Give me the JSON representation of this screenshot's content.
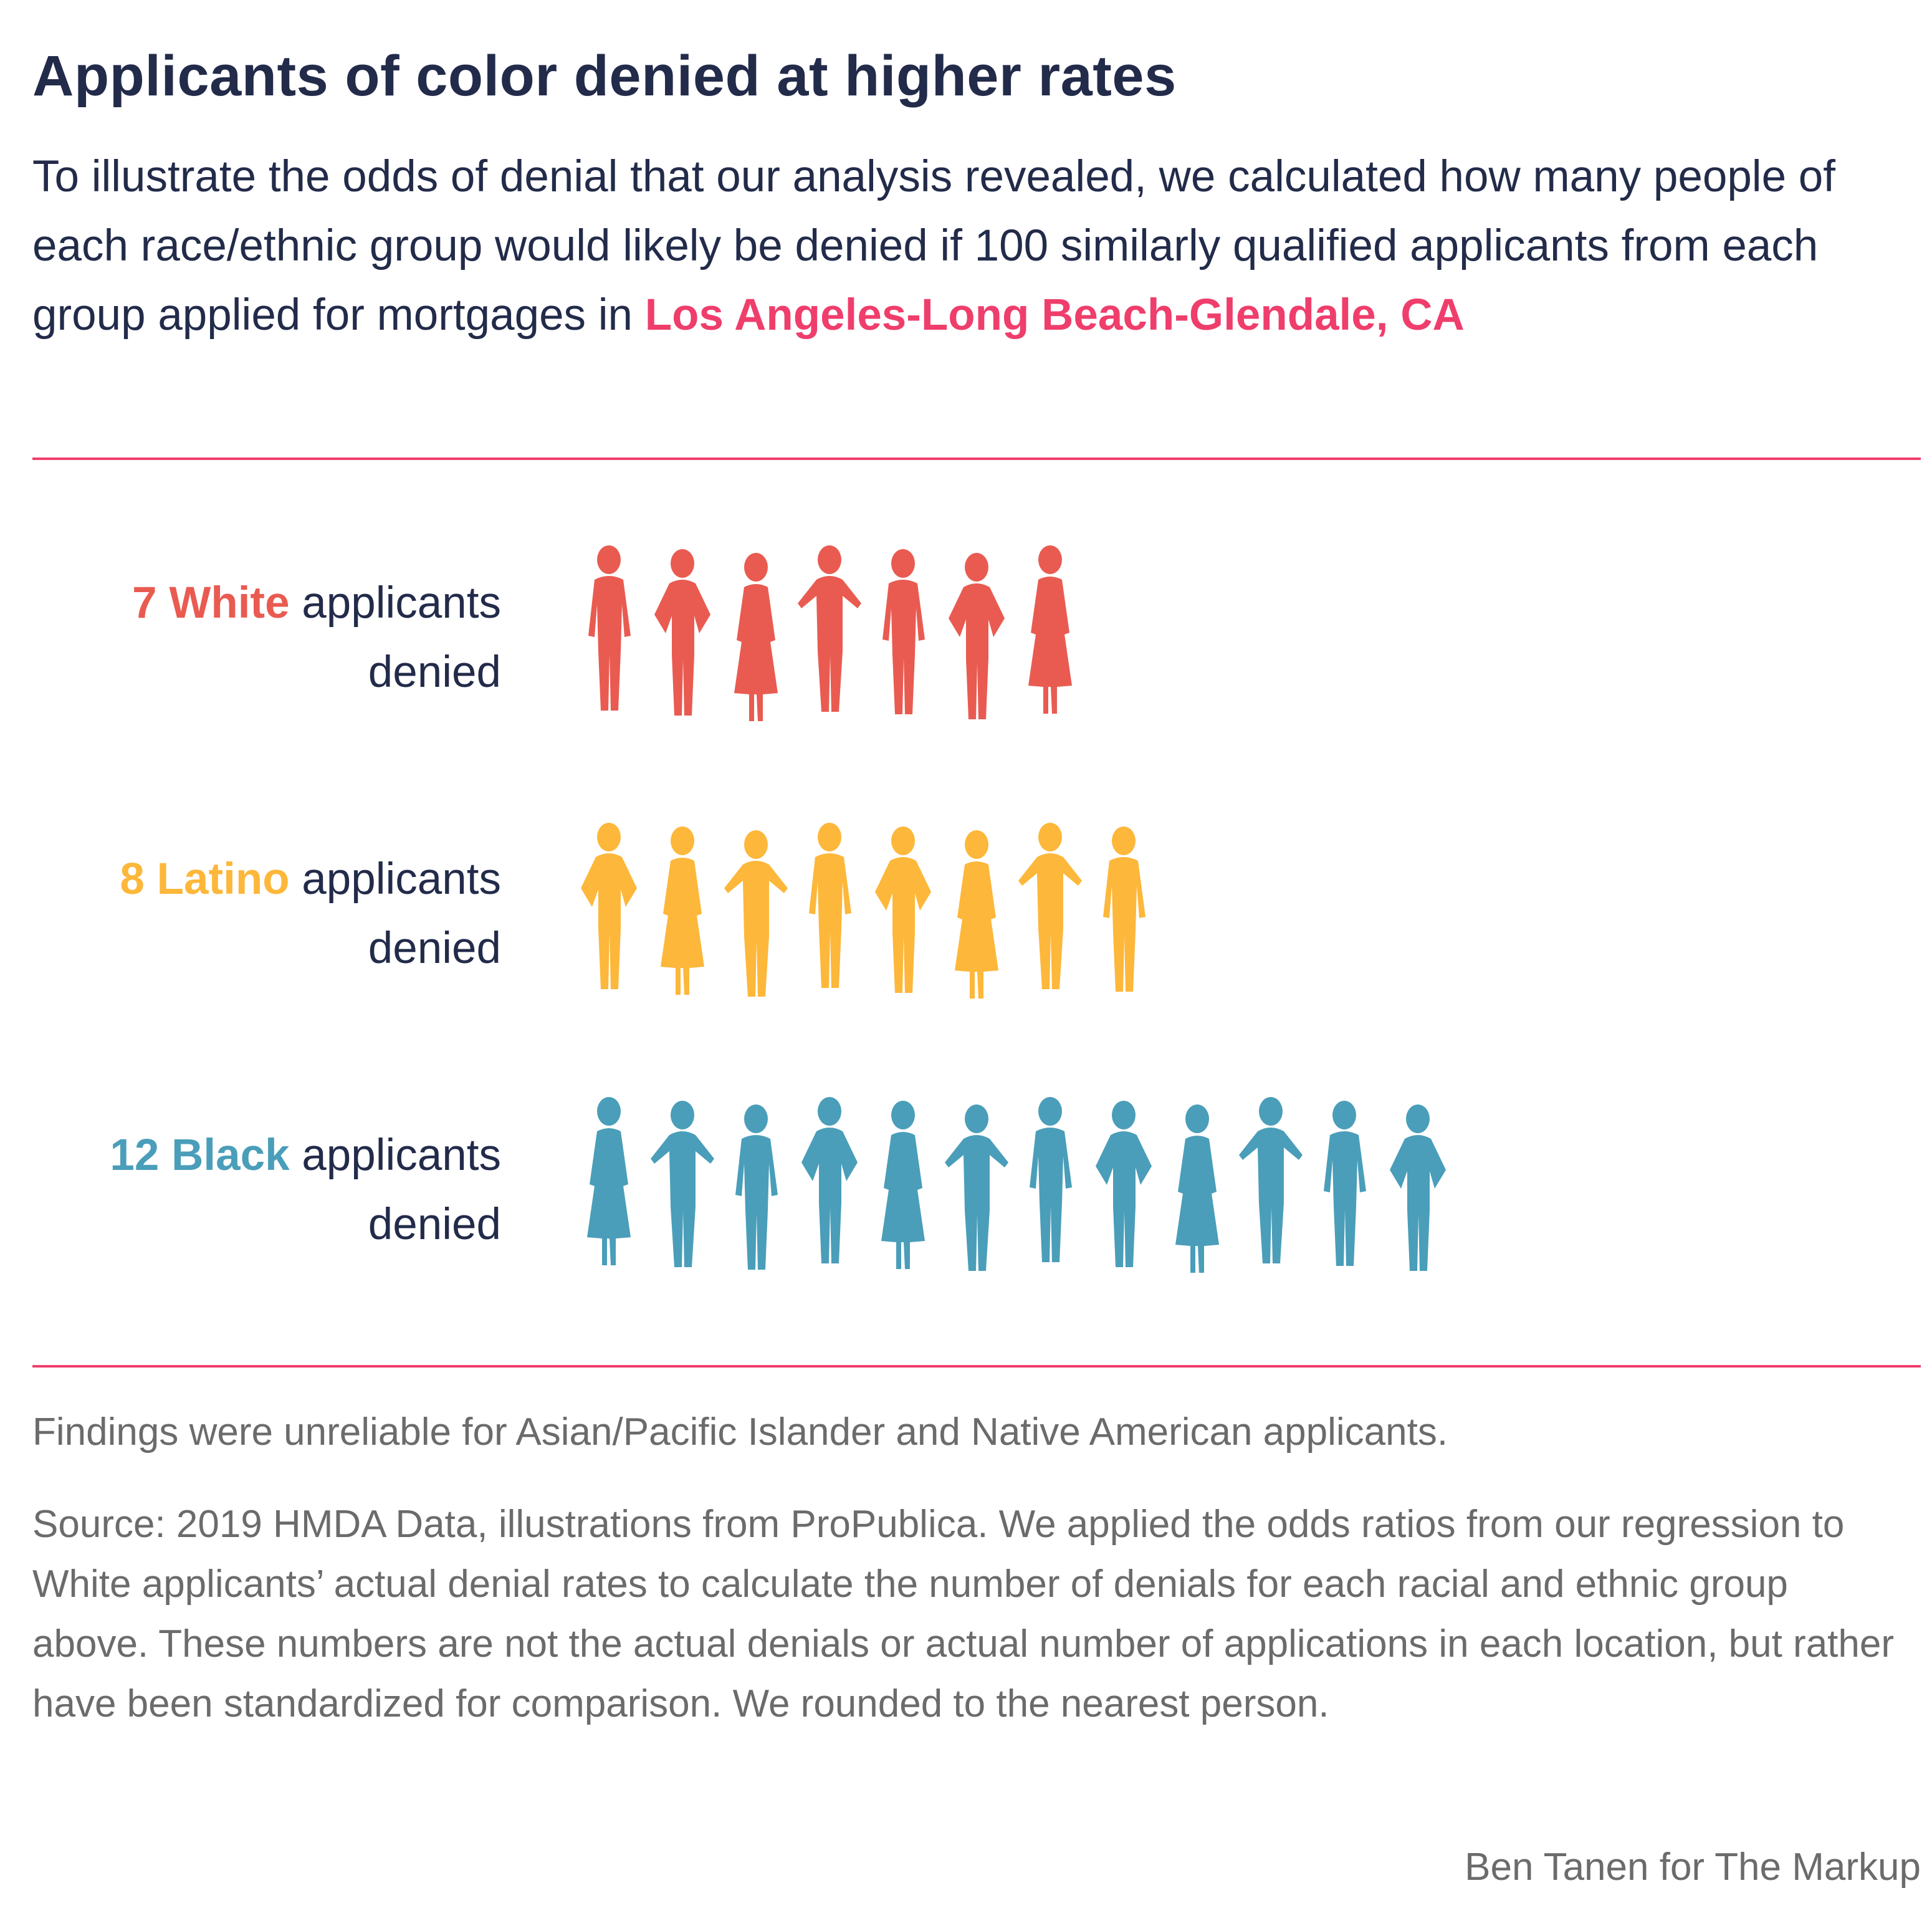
{
  "header": {
    "title": "Applicants of color denied at higher rates",
    "intro_text": "To illustrate the odds of denial that our analysis revealed, we calculated how many people of each race/ethnic group would likely be denied if 100 similarly qualified applicants from each group applied for mortgages in ",
    "location": "Los Angeles-Long Beach-Glendale, CA"
  },
  "chart_data": {
    "type": "pictogram",
    "unit": "person",
    "series": [
      {
        "count": "7",
        "group": "White",
        "suffix": " applicants",
        "line2": "denied",
        "value": 7,
        "color": "#e95b51"
      },
      {
        "count": "8",
        "group": "Latino",
        "suffix": " applicants",
        "line2": "denied",
        "value": 8,
        "color": "#fdb73a"
      },
      {
        "count": "12",
        "group": "Black",
        "suffix": " applicants",
        "line2": "denied",
        "value": 12,
        "color": "#4a9eb9"
      }
    ]
  },
  "footer": {
    "note": "Findings were unreliable for Asian/Pacific Islander and Native American applicants.",
    "source": "Source: 2019 HMDA Data, illustrations from ProPublica. We applied the odds ratios from our regression to White applicants’ actual denial rates to calculate the number of denials for each racial and ethnic group above. These numbers are not the actual denials or actual number of applications in each location, but rather have been standardized for comparison. We rounded to the nearest person.",
    "credit": "Ben Tanen for The Markup"
  },
  "colors": {
    "title": "#232b4a",
    "accent": "#ef3e6c",
    "muted": "#6b6b6b"
  },
  "icons": {
    "person": "person-silhouette-icon"
  }
}
